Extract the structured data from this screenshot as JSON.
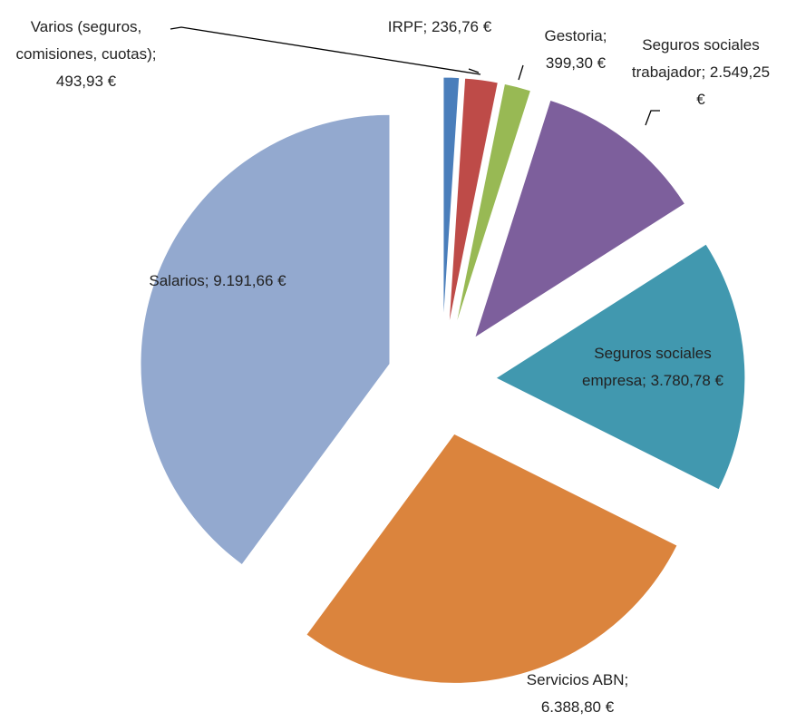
{
  "chart_data": {
    "type": "pie",
    "categories": [
      "IRPF",
      "Varios (seguros, comisiones, cuotas)",
      "Gestoria",
      "Seguros sociales trabajador",
      "Seguros sociales empresa",
      "Servicios ABN",
      "Salarios"
    ],
    "values": [
      236.76,
      493.93,
      399.3,
      2549.25,
      3780.78,
      6388.8,
      9191.66
    ],
    "value_labels": [
      "236,76 €",
      "493,93 €",
      "399,30 €",
      "2.549,25 €",
      "3.780,78 €",
      "6.388,80 €",
      "9.191,66 €"
    ],
    "label_separator": ";",
    "colors": [
      "#4a7ebb",
      "#be4b48",
      "#98b954",
      "#7d5f9c",
      "#4198af",
      "#db843d",
      "#93a9cf"
    ],
    "exploded": true
  }
}
